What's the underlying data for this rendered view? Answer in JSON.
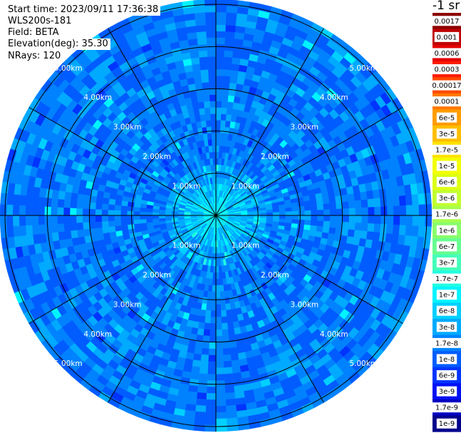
{
  "header": {
    "start_time": "Start time: 2023/09/11 17:36:38",
    "instrument": "WLS200s-181",
    "field": "Field: BETA",
    "elevation": "Elevation(deg): 35.30",
    "nrays": "NRays: 120"
  },
  "units_label": "-1 sr",
  "chart_data": {
    "type": "heatmap",
    "projection": "polar-ppi",
    "field": "BETA",
    "nrays": 120,
    "max_range_km": 5.1,
    "range_rings_km": [
      1,
      2,
      3,
      4,
      5
    ],
    "ring_labels": [
      "1.00km",
      "2.00km",
      "3.00km",
      "4.00km",
      "5.00km"
    ],
    "spokes_deg": [
      0,
      30,
      60,
      90,
      120,
      150,
      180,
      210,
      240,
      270,
      300,
      330
    ],
    "color_scale": "log",
    "dominant_value_near": "1e-6",
    "near_center_value": "1e-7",
    "colorbar": {
      "labels": [
        "0.0017",
        "0.001",
        "0.0006",
        "0.0003",
        "0.00017",
        "0.0001",
        "6e-5",
        "3e-5",
        "1.7e-5",
        "1e-5",
        "6e-6",
        "3e-6",
        "1.7e-6",
        "1e-6",
        "6e-7",
        "3e-7",
        "1.7e-7",
        "1e-7",
        "6e-8",
        "3e-8",
        "1.7e-8",
        "1e-8",
        "6e-9",
        "3e-9",
        "1.7e-9",
        "1e-9"
      ],
      "colors": [
        "#8e0000",
        "#bf0000",
        "#e40000",
        "#ff1c00",
        "#ff4a00",
        "#ff7800",
        "#ff9d00",
        "#ffbf00",
        "#ffe200",
        "#f3ff00",
        "#ddff12",
        "#c2ff2e",
        "#a6ff4b",
        "#88ff6b",
        "#66ff91",
        "#44ffb9",
        "#22ffe2",
        "#00f4ff",
        "#00d0ff",
        "#00aaff",
        "#0082ff",
        "#005cff",
        "#0034ff",
        "#0010f4",
        "#0000c2",
        "#00008c"
      ]
    }
  }
}
